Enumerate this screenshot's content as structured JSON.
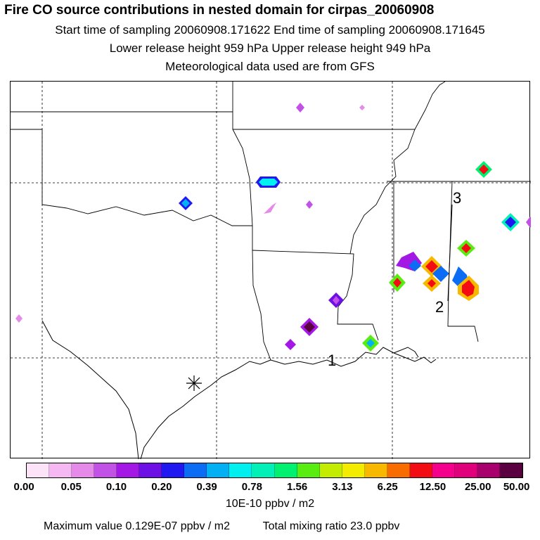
{
  "header": {
    "title": "Fire CO source contributions in nested domain for cirpas_20060908",
    "line1": "Start time of sampling 20060908.171622     End time of sampling 20060908.171645",
    "line2": "Lower release height  959 hPa       Upper release height  949 hPa",
    "line3": "Meteorological data used are from GFS"
  },
  "map": {
    "point_labels": [
      "1",
      "2",
      "3"
    ],
    "marker": "asterisk-marker"
  },
  "colorbar": {
    "colors": [
      "#fde3f8",
      "#f6b8f2",
      "#e58ae9",
      "#c252e6",
      "#a418e6",
      "#6c10e6",
      "#2018f0",
      "#0c6cf4",
      "#04b0f4",
      "#00f0f0",
      "#00f0b8",
      "#00f070",
      "#58ec10",
      "#c4ec00",
      "#f4ec00",
      "#f8b800",
      "#f86c00",
      "#f40c14",
      "#f4008c",
      "#e0007c",
      "#a8006c",
      "#5a0040"
    ],
    "tick_labels": [
      "0.00",
      "0.05",
      "0.10",
      "0.20",
      "0.39",
      "0.78",
      "1.56",
      "3.13",
      "6.25",
      "12.50",
      "25.00",
      "50.00"
    ],
    "units": "10E-10 ppbv / m2"
  },
  "summary": {
    "max_label": "Maximum value  0.129E-07 ppbv / m2",
    "total_label": "Total mixing ratio       23.0 ppbv"
  }
}
